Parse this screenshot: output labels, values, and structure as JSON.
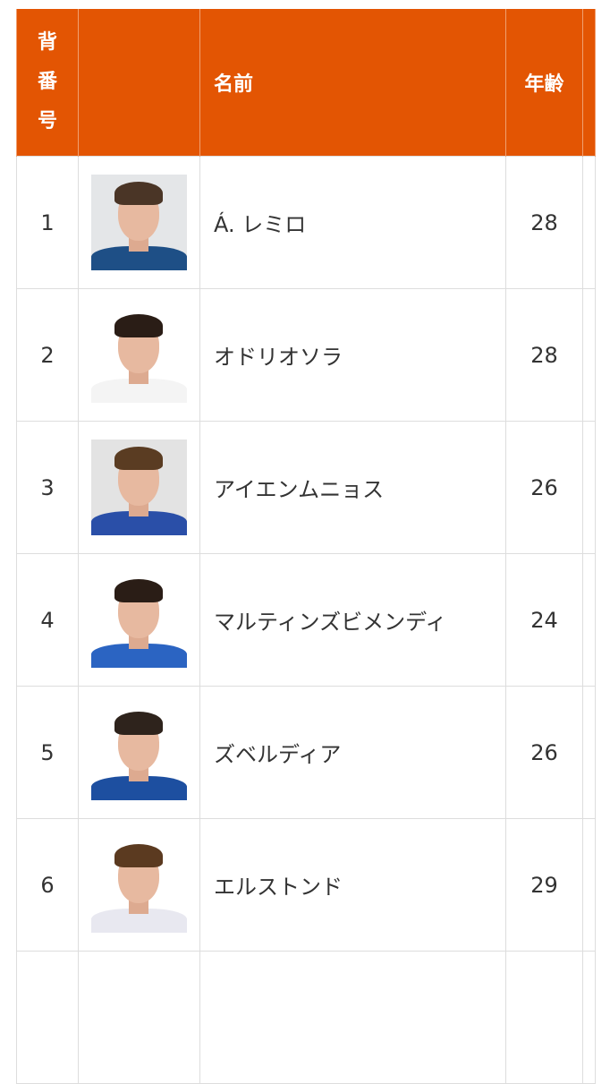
{
  "table": {
    "headers": {
      "number": "背番号",
      "photo": "",
      "name": "名前",
      "age": "年齢"
    },
    "header_color": "#e35503",
    "rows": [
      {
        "number": "1",
        "name": "Á. レミロ",
        "age": "28",
        "photo": {
          "bg": "#e4e6e8",
          "hair": "#4a3526",
          "shirt": "#1e4f86"
        }
      },
      {
        "number": "2",
        "name": "オドリオソラ",
        "age": "28",
        "photo": {
          "bg": "#ffffff",
          "hair": "#2a1d16",
          "shirt": "#f4f4f4"
        }
      },
      {
        "number": "3",
        "name": "アイエンムニョス",
        "age": "26",
        "photo": {
          "bg": "#e3e3e3",
          "hair": "#5a3c22",
          "shirt": "#2a4fa8"
        }
      },
      {
        "number": "4",
        "name": "マルティンズビメンディ",
        "age": "24",
        "photo": {
          "bg": "#ffffff",
          "hair": "#2a1d16",
          "shirt": "#2b64c2"
        }
      },
      {
        "number": "5",
        "name": "ズベルディア",
        "age": "26",
        "photo": {
          "bg": "#ffffff",
          "hair": "#2e231c",
          "shirt": "#1d4fa0"
        }
      },
      {
        "number": "6",
        "name": "エルストンド",
        "age": "29",
        "photo": {
          "bg": "#ffffff",
          "hair": "#5b3a20",
          "shirt": "#e8e8f0"
        }
      }
    ]
  }
}
